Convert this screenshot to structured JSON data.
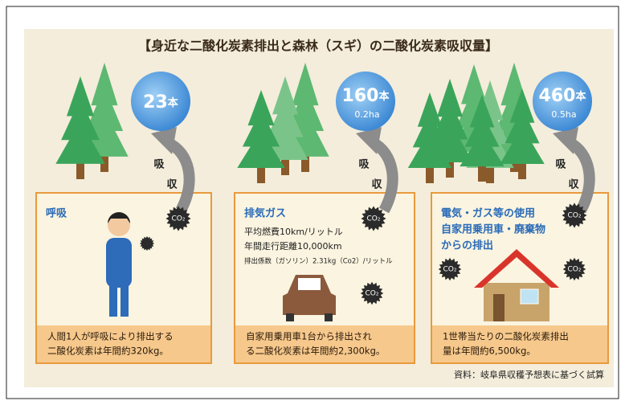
{
  "title": "【身近な二酸化炭素排出と森林（スギ）の二酸化炭素吸収量】",
  "co2_label": "CO₂",
  "absorb": [
    "吸",
    "収"
  ],
  "panels": [
    {
      "count": "23",
      "unit": "本",
      "heading": [
        "呼吸"
      ],
      "details": [],
      "caption": [
        "人間1人が呼吸により排出する",
        "二酸化炭素は年間約320kg。"
      ]
    },
    {
      "count": "160",
      "unit": "本",
      "area": "0.2ha",
      "heading": [
        "排気ガス"
      ],
      "details": [
        "平均燃費10km/リットル",
        "年間走行距離10,000km",
        "排出係数（ガソリン）2.31kg（Co2）/リットル"
      ],
      "caption": [
        "自家用乗用車1台から排出され",
        "る二酸化炭素は年間約2,300kg。"
      ]
    },
    {
      "count": "460",
      "unit": "本",
      "area": "0.5ha",
      "heading": [
        "電気・ガス等の使用",
        "自家用乗用車・廃棄物",
        "からの排出"
      ],
      "details": [],
      "caption": [
        "1世帯当たりの二酸化炭素排出",
        "量は年間約6,500kg。"
      ]
    }
  ],
  "source": "資料：岐阜県収穫予想表に基づく試算"
}
